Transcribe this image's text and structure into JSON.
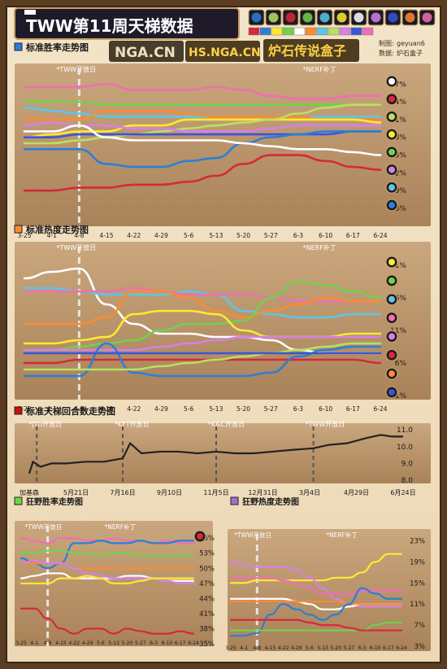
{
  "header": {
    "title": "TWW第11周天梯数据",
    "logos": [
      "NGA.CN",
      "HS.NGA.CN",
      "炉石传说盒子"
    ],
    "credit_label_author": "制图:",
    "credit_author": "geyuan6",
    "credit_label_data": "数据:",
    "credit_data": "炉石盒子"
  },
  "classes": [
    {
      "name": "Death Knight",
      "icon": "death-knight-icon",
      "color": "#2a7fd8"
    },
    {
      "name": "Demon Hunter",
      "icon": "demon-hunter-icon",
      "color": "#b9e060"
    },
    {
      "name": "Druid",
      "icon": "druid-icon",
      "color": "#d8283a"
    },
    {
      "name": "Hunter",
      "icon": "hunter-icon",
      "color": "#6fd34a"
    },
    {
      "name": "Mage",
      "icon": "mage-icon",
      "color": "#5cc6e8"
    },
    {
      "name": "Paladin",
      "icon": "paladin-icon",
      "color": "#ffe930"
    },
    {
      "name": "Priest",
      "icon": "priest-icon",
      "color": "#ffffff"
    },
    {
      "name": "Rogue",
      "icon": "rogue-icon",
      "color": "#d580e8"
    },
    {
      "name": "Shaman",
      "icon": "shaman-icon",
      "color": "#3a55d8"
    },
    {
      "name": "Warlock",
      "icon": "warlock-icon",
      "color": "#ff8a30"
    },
    {
      "name": "Warrior",
      "icon": "warrior-icon",
      "color": "#f06eb4"
    }
  ],
  "chart_data": [
    {
      "id": "std-winrate",
      "type": "line",
      "title": "标准胜率走势图",
      "categories": [
        "3-25",
        "4-1",
        "4-8",
        "4-15",
        "4-22",
        "4-29",
        "5-6",
        "5-13",
        "5-20",
        "5-27",
        "6-3",
        "6-10",
        "6-17",
        "6-24"
      ],
      "yticks": [
        36,
        39,
        42,
        45,
        48,
        51,
        54,
        57
      ],
      "ytick_labels": [
        "36%",
        "39%",
        "42%",
        "45%",
        "48%",
        "51%",
        "54%",
        "57%"
      ],
      "ylim": [
        36,
        58
      ],
      "annotations": [
        {
          "text": "*TWW开放日",
          "x_index": 2
        },
        {
          "text": "*NERF补丁",
          "x_index": 11
        }
      ],
      "series": [
        {
          "color": "#f06eb4",
          "values": [
            56.5,
            56.5,
            56.5,
            57,
            56,
            56,
            56,
            56.5,
            56,
            55,
            54.5,
            54.5,
            55,
            55
          ]
        },
        {
          "color": "#6fd34a",
          "values": [
            54,
            54,
            54,
            53.5,
            53.5,
            53.5,
            53.5,
            53.5,
            53.5,
            53.5,
            53.5,
            53.5,
            53.5,
            53.5
          ]
        },
        {
          "color": "#5cc6e8",
          "values": [
            53,
            52.5,
            52,
            51.5,
            51.5,
            51.5,
            51.5,
            51.5,
            51.5,
            51.5,
            51.5,
            51.5,
            51.5,
            51.5
          ]
        },
        {
          "color": "#ff8a30",
          "values": [
            51,
            51,
            51,
            52.5,
            52.5,
            52.5,
            52,
            51.5,
            51.5,
            51.5,
            51.5,
            51,
            51,
            51
          ]
        },
        {
          "color": "#ffe930",
          "values": [
            48,
            48.5,
            49,
            49,
            50,
            50,
            51,
            51,
            51,
            51,
            51,
            51,
            51,
            50.5
          ]
        },
        {
          "color": "#b9e060",
          "values": [
            47,
            47,
            47.5,
            48,
            48.5,
            49,
            49.5,
            50,
            50.5,
            51,
            52,
            53,
            53.5,
            53.5
          ]
        },
        {
          "color": "#d580e8",
          "values": [
            50,
            50.5,
            50,
            50,
            49.5,
            49.5,
            49,
            49,
            49,
            49.5,
            50,
            50,
            50,
            50
          ]
        },
        {
          "color": "#3a55d8",
          "values": [
            48,
            48,
            48.5,
            48.5,
            48.5,
            48.5,
            48.5,
            48.5,
            48.5,
            48.5,
            48.5,
            48.5,
            49,
            49
          ]
        },
        {
          "color": "#2a7fd8",
          "values": [
            46,
            46,
            46,
            43.5,
            43,
            43,
            44,
            44.5,
            47,
            48,
            48.5,
            49,
            49,
            49
          ]
        },
        {
          "color": "#ffffff",
          "values": [
            49,
            49,
            50,
            48,
            47.5,
            47.5,
            47.5,
            47.5,
            47,
            46.5,
            46,
            46,
            45.5,
            45
          ]
        },
        {
          "color": "#d8283a",
          "values": [
            39,
            39,
            39.5,
            39.5,
            40,
            40,
            40.5,
            41.5,
            43.5,
            45,
            45,
            44,
            43,
            42.5
          ]
        }
      ],
      "end_icons": [
        "priest-icon",
        "druid-icon",
        "demon-hunter-icon",
        "paladin-icon",
        "hunter-icon",
        "rogue-icon",
        "mage-icon",
        "death-knight-icon"
      ]
    },
    {
      "id": "std-popularity",
      "type": "line",
      "title": "标准热度走势图",
      "categories": [
        "3-25",
        "4-1",
        "4-8",
        "4-15",
        "4-22",
        "4-29",
        "5-6",
        "5-13",
        "5-20",
        "5-27",
        "6-3",
        "6-10",
        "6-17",
        "6-24"
      ],
      "yticks": [
        1,
        6,
        11,
        16,
        21
      ],
      "ytick_labels": [
        "1%",
        "6%",
        "11%",
        "16%",
        "21%"
      ],
      "ylim": [
        1,
        22
      ],
      "annotations": [
        {
          "text": "*TWW开放日",
          "x_index": 2
        },
        {
          "text": "*NERF补丁",
          "x_index": 11
        }
      ],
      "series": [
        {
          "color": "#ffffff",
          "values": [
            19,
            20,
            20.5,
            15,
            12,
            10.5,
            10.5,
            10,
            10,
            9.5,
            8,
            7.5,
            7.5,
            7.5
          ]
        },
        {
          "color": "#5cc6e8",
          "values": [
            17.5,
            17.5,
            17,
            16.5,
            16.5,
            16.5,
            17,
            16.5,
            14,
            13.5,
            13,
            13,
            13.5,
            13.5
          ]
        },
        {
          "color": "#f06eb4",
          "values": [
            17,
            17,
            17,
            17,
            17.5,
            17,
            16.5,
            16.5,
            16.5,
            16,
            15.5,
            15.5,
            15.5,
            15.5
          ]
        },
        {
          "color": "#ff8a30",
          "values": [
            12,
            12,
            12,
            13,
            17,
            17,
            16,
            14,
            13,
            14,
            15,
            16,
            15.5,
            15.5
          ]
        },
        {
          "color": "#6fd34a",
          "values": [
            8,
            8,
            8.5,
            9,
            9.5,
            11,
            12,
            12,
            12.5,
            16,
            18.5,
            18,
            17,
            16
          ]
        },
        {
          "color": "#ffe930",
          "values": [
            9,
            9,
            9.5,
            10,
            13.5,
            14,
            14,
            13.5,
            11,
            10,
            10,
            10,
            10.5,
            10.5
          ]
        },
        {
          "color": "#d580e8",
          "values": [
            8,
            8,
            8,
            8,
            8,
            8.5,
            9,
            9.5,
            10,
            10,
            10,
            10,
            10,
            10
          ]
        },
        {
          "color": "#d8283a",
          "values": [
            6,
            6,
            6.5,
            6.5,
            6.5,
            6.5,
            6.5,
            6.5,
            6.5,
            6.5,
            6.5,
            6.5,
            6.5,
            6
          ]
        },
        {
          "color": "#2a7fd8",
          "values": [
            4,
            4,
            4,
            9,
            4.5,
            4,
            4,
            4,
            4,
            4.5,
            7,
            8,
            8.5,
            8.5
          ]
        },
        {
          "color": "#b9e060",
          "values": [
            5,
            5,
            5,
            5,
            5,
            5.5,
            6,
            6.5,
            7,
            7.5,
            8,
            8.5,
            9,
            9
          ]
        },
        {
          "color": "#3a55d8",
          "values": [
            7.5,
            7.5,
            7.5,
            7.5,
            7.5,
            7.5,
            7.5,
            7.5,
            7.5,
            7.5,
            7.5,
            7.5,
            7.5,
            7.5
          ]
        }
      ],
      "end_icons": [
        "paladin-icon",
        "hunter-icon",
        "mage-icon",
        "warrior-icon",
        "rogue-icon",
        "druid-icon",
        "warlock-icon",
        "shaman-icon"
      ]
    },
    {
      "id": "std-rounds",
      "type": "line",
      "title": "标准天梯回合数走势图",
      "x_labels": [
        "加基森",
        "5月21日",
        "7月16日",
        "9月10日",
        "11月5日",
        "12月31日",
        "3月4日",
        "4月29日",
        "6月24日"
      ],
      "yticks": [
        8,
        9,
        10,
        11
      ],
      "ytick_labels": [
        "8.0",
        "9.0",
        "10.0",
        "11.0"
      ],
      "ylim": [
        8,
        11.2
      ],
      "annotations": [
        {
          "text": "*JTU开放日",
          "x": 0.02
        },
        {
          "text": "*KFT开放日",
          "x": 0.25
        },
        {
          "text": "*K&C开放日",
          "x": 0.5
        },
        {
          "text": "*TWW开放日",
          "x": 0.76
        }
      ],
      "series": [
        {
          "color": "#222222",
          "points": [
            [
              0,
              8.4
            ],
            [
              0.01,
              9.1
            ],
            [
              0.03,
              8.8
            ],
            [
              0.06,
              9.0
            ],
            [
              0.1,
              9.0
            ],
            [
              0.15,
              9.1
            ],
            [
              0.2,
              9.1
            ],
            [
              0.25,
              9.3
            ],
            [
              0.27,
              10.2
            ],
            [
              0.3,
              9.6
            ],
            [
              0.35,
              9.7
            ],
            [
              0.4,
              9.7
            ],
            [
              0.45,
              9.6
            ],
            [
              0.5,
              9.7
            ],
            [
              0.55,
              9.6
            ],
            [
              0.6,
              9.6
            ],
            [
              0.65,
              9.7
            ],
            [
              0.7,
              9.8
            ],
            [
              0.76,
              9.9
            ],
            [
              0.8,
              10.1
            ],
            [
              0.85,
              10.2
            ],
            [
              0.9,
              10.5
            ],
            [
              0.94,
              10.7
            ],
            [
              0.97,
              10.6
            ],
            [
              1,
              10.6
            ]
          ]
        }
      ]
    },
    {
      "id": "wild-winrate",
      "type": "line",
      "title": "狂野胜率走势图",
      "categories": [
        "3-25",
        "4-1",
        "4-8",
        "4-15",
        "4-22",
        "4-29",
        "5-6",
        "5-13",
        "5-20",
        "5-27",
        "6-3",
        "6-10",
        "6-17",
        "6-24"
      ],
      "yticks": [
        35,
        38,
        41,
        44,
        47,
        50,
        53,
        56
      ],
      "ytick_labels": [
        "35%",
        "38%",
        "41%",
        "44%",
        "47%",
        "50%",
        "53%",
        "56%"
      ],
      "ylim": [
        35,
        57
      ],
      "annotations": [
        {
          "text": "*TWW开放日",
          "x_index": 2
        },
        {
          "text": "*NERF补丁",
          "x_index": 8
        }
      ],
      "series": [
        {
          "color": "#f06eb4",
          "values": [
            56,
            55.5,
            55,
            56,
            56,
            55.5,
            55.5,
            56,
            55.5,
            55.5,
            55,
            55.5,
            55,
            55
          ]
        },
        {
          "color": "#2a7fd8",
          "values": [
            52,
            51,
            50,
            51,
            55,
            55,
            55.5,
            55,
            55,
            55.5,
            55,
            55,
            55.5,
            55.5
          ]
        },
        {
          "color": "#6fd34a",
          "values": [
            53,
            53,
            53.5,
            53.5,
            53,
            53,
            52.5,
            53,
            53,
            52.5,
            52.5,
            52.5,
            52.5,
            52.5
          ]
        },
        {
          "color": "#ff8a30",
          "values": [
            51,
            51,
            51,
            51,
            50,
            50,
            50,
            50,
            50,
            50,
            50,
            50,
            50,
            50
          ]
        },
        {
          "color": "#ffffff",
          "values": [
            48,
            48.5,
            49,
            49,
            48,
            48,
            48,
            48,
            48.5,
            48.5,
            48,
            47.5,
            47.5,
            47.5
          ]
        },
        {
          "color": "#d580e8",
          "values": [
            51,
            51.5,
            51,
            51,
            50,
            49,
            48.5,
            48,
            48,
            48,
            48,
            47.5,
            47,
            47
          ]
        },
        {
          "color": "#ffe930",
          "values": [
            47,
            47,
            47,
            48,
            48,
            48.5,
            48,
            47,
            47,
            47.5,
            48,
            48,
            48,
            48
          ]
        },
        {
          "color": "#d8283a",
          "values": [
            42,
            42,
            40,
            38,
            37,
            38,
            38,
            37,
            38,
            37.5,
            37,
            37,
            37.5,
            37
          ]
        }
      ],
      "end_icons": [
        "druid-icon"
      ]
    },
    {
      "id": "wild-popularity",
      "type": "line",
      "title": "狂野热度走势图",
      "categories": [
        "3-25",
        "4-1",
        "4-8",
        "4-15",
        "4-22",
        "4-29",
        "5-6",
        "5-13",
        "5-20",
        "5-27",
        "6-3",
        "6-10",
        "6-17",
        "6-24"
      ],
      "yticks": [
        3,
        7,
        11,
        15,
        19,
        23
      ],
      "ytick_labels": [
        "3%",
        "7%",
        "11%",
        "15%",
        "19%",
        "23%"
      ],
      "ylim": [
        3,
        24
      ],
      "annotations": [
        {
          "text": "*TWW开放日",
          "x_index": 2
        },
        {
          "text": "*NERF补丁",
          "x_index": 9
        }
      ],
      "series": [
        {
          "color": "#ffe930",
          "values": [
            15,
            15,
            15.5,
            15.5,
            15.5,
            15.5,
            15.5,
            15.5,
            16,
            16,
            17,
            19,
            20.5,
            20.5
          ]
        },
        {
          "color": "#d580e8",
          "values": [
            19,
            18.5,
            18,
            18,
            18,
            17.5,
            16,
            14,
            12,
            11,
            10.5,
            10.5,
            10.5,
            10.5
          ]
        },
        {
          "color": "#f06eb4",
          "values": [
            16,
            16,
            16,
            16,
            15.5,
            15,
            14,
            13,
            13,
            13,
            13.5,
            13.5,
            13.5,
            13.5
          ]
        },
        {
          "color": "#ffffff",
          "values": [
            12,
            12,
            12,
            12,
            12,
            11.5,
            11,
            10,
            10,
            10.5,
            11,
            11,
            11,
            11
          ]
        },
        {
          "color": "#ff8a30",
          "values": [
            11.5,
            11.5,
            11.5,
            11.5,
            11.5,
            11.5,
            11.5,
            11.5,
            11.5,
            11,
            11,
            11,
            11,
            11
          ]
        },
        {
          "color": "#2a7fd8",
          "values": [
            5,
            5,
            5.5,
            9,
            11,
            10,
            9,
            8,
            9,
            11,
            14,
            13,
            12,
            12
          ]
        },
        {
          "color": "#6fd34a",
          "values": [
            6,
            6,
            6,
            6,
            6,
            6,
            6,
            6,
            6,
            6,
            6,
            7,
            7.5,
            7.5
          ]
        },
        {
          "color": "#d8283a",
          "values": [
            8,
            8,
            8,
            8,
            8,
            8,
            7.5,
            7,
            7,
            6.5,
            6,
            6,
            6,
            6
          ]
        }
      ]
    }
  ],
  "legend_colors": [
    "#d8283a",
    "#2a7fd8",
    "#ffe930",
    "#6fd34a",
    "#ffffff",
    "#ff8a30",
    "#5cc6e8",
    "#b9e060",
    "#d580e8",
    "#3a55d8",
    "#f06eb4"
  ]
}
